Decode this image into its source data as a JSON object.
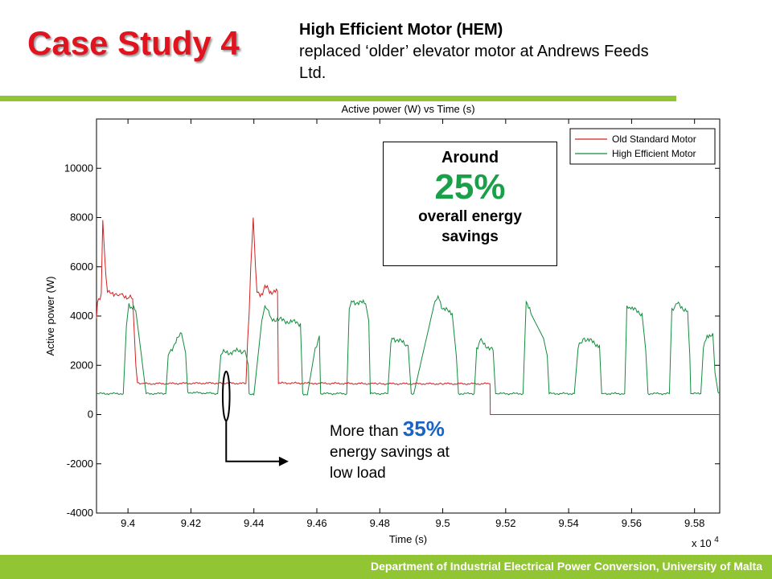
{
  "slide": {
    "title": "Case Study 4",
    "subtitle_bold": "High Efficient Motor (HEM)",
    "subtitle_rest": "replaced ‘older’ elevator motor at Andrews Feeds Ltd.",
    "footer": "Department of Industrial Electrical Power Conversion, University of Malta"
  },
  "callout_main": {
    "line1": "Around",
    "value": "25%",
    "line2": "overall energy",
    "line3": "savings"
  },
  "callout_low": {
    "prefix": "More than ",
    "value": "35%",
    "line2": "energy savings at",
    "line3": "low load"
  },
  "colors": {
    "accent_green": "#92c533",
    "title_red": "#e0141e",
    "old_motor": "#d42020",
    "hem_motor": "#128c3c",
    "highlight_green": "#19a048",
    "highlight_blue": "#1763c7"
  },
  "chart_data": {
    "type": "line",
    "title": "Active power (W) vs Time (s)",
    "xlabel": "Time (s)",
    "ylabel": "Active power (W)",
    "x_exponent_label": "x 10",
    "x_exponent": "4",
    "xlim": [
      9.39,
      9.588
    ],
    "ylim": [
      -4000,
      12000
    ],
    "xticks": [
      9.4,
      9.42,
      9.44,
      9.46,
      9.48,
      9.5,
      9.52,
      9.54,
      9.56,
      9.58
    ],
    "xtick_labels": [
      "9.4",
      "9.42",
      "9.44",
      "9.46",
      "9.48",
      "9.5",
      "9.52",
      "9.54",
      "9.56",
      "9.58"
    ],
    "yticks": [
      -4000,
      -2000,
      0,
      2000,
      4000,
      6000,
      8000,
      10000
    ],
    "ytick_labels": [
      "-4000",
      "-2000",
      "0",
      "2000",
      "4000",
      "6000",
      "8000",
      "10000"
    ],
    "grid": false,
    "legend_position": "top-right",
    "series": [
      {
        "name": "Old Standard Motor",
        "color": "#d42020",
        "x": [
          9.39,
          9.3903,
          9.3915,
          9.392,
          9.393,
          9.3935,
          9.394,
          9.397,
          9.3982,
          9.4,
          9.4015,
          9.4025,
          9.403,
          9.405,
          9.43,
          9.4375,
          9.438,
          9.4385,
          9.439,
          9.4398,
          9.4405,
          9.441,
          9.4415,
          9.442,
          9.4435,
          9.445,
          9.4475,
          9.4478,
          9.449,
          9.46,
          9.48,
          9.5,
          9.515,
          9.5151,
          9.588
        ],
        "y": [
          3900,
          4600,
          4900,
          7900,
          5500,
          5100,
          4900,
          4950,
          4800,
          4800,
          4700,
          2000,
          1300,
          1250,
          1280,
          1260,
          3000,
          4100,
          6000,
          8000,
          6000,
          4900,
          5000,
          4800,
          5200,
          5000,
          5000,
          1300,
          1280,
          1270,
          1250,
          1250,
          1250,
          0,
          0
        ]
      },
      {
        "name": "High Efficient Motor",
        "color": "#128c3c",
        "x": [
          9.39,
          9.3985,
          9.3995,
          9.4003,
          9.4015,
          9.4025,
          9.4035,
          9.4055,
          9.4058,
          9.412,
          9.4128,
          9.4145,
          9.417,
          9.4183,
          9.419,
          9.4285,
          9.4295,
          9.43,
          9.4372,
          9.4382,
          9.4385,
          9.44,
          9.4425,
          9.4435,
          9.4442,
          9.4455,
          9.4548,
          9.4555,
          9.457,
          9.4595,
          9.4608,
          9.4612,
          9.4695,
          9.4703,
          9.471,
          9.4755,
          9.4765,
          9.477,
          9.4825,
          9.4835,
          9.4845,
          9.489,
          9.49,
          9.4908,
          9.4975,
          9.4985,
          9.5,
          9.503,
          9.5043,
          9.505,
          9.51,
          9.5108,
          9.5118,
          9.516,
          9.5168,
          9.5172,
          9.5255,
          9.5265,
          9.528,
          9.532,
          9.5332,
          9.5338,
          9.5418,
          9.543,
          9.545,
          9.5498,
          9.5505,
          9.551,
          9.5578,
          9.5585,
          9.5598,
          9.5633,
          9.5645,
          9.5652,
          9.572,
          9.5728,
          9.5745,
          9.5778,
          9.5785,
          9.5788,
          9.582,
          9.5828,
          9.584,
          9.5858,
          9.5865,
          9.5875,
          9.588
        ],
        "y": [
          850,
          850,
          3600,
          4500,
          4300,
          4200,
          3200,
          1100,
          850,
          850,
          2400,
          2800,
          3300,
          2500,
          900,
          850,
          2400,
          2500,
          2600,
          2000,
          850,
          800,
          3800,
          4400,
          4300,
          3900,
          3700,
          850,
          800,
          2700,
          3200,
          850,
          850,
          4300,
          4600,
          4500,
          3800,
          850,
          850,
          2900,
          3100,
          2800,
          850,
          850,
          4600,
          4800,
          4300,
          4100,
          2400,
          850,
          850,
          2700,
          3000,
          2600,
          850,
          850,
          850,
          4600,
          4100,
          3100,
          2400,
          850,
          850,
          2700,
          3100,
          2800,
          850,
          850,
          850,
          4400,
          4300,
          4100,
          2600,
          850,
          850,
          4300,
          4500,
          4200,
          2400,
          850,
          850,
          2700,
          3200,
          3300,
          1700,
          900,
          850
        ]
      }
    ],
    "annotations": [
      {
        "type": "ellipse",
        "x": 9.4312,
        "y": 750,
        "rx": 0.0011,
        "ry": 1000
      },
      {
        "type": "arrow",
        "points": [
          [
            9.4312,
            -250
          ],
          [
            9.4312,
            -1900
          ],
          [
            9.4495,
            -1900
          ]
        ]
      }
    ]
  }
}
